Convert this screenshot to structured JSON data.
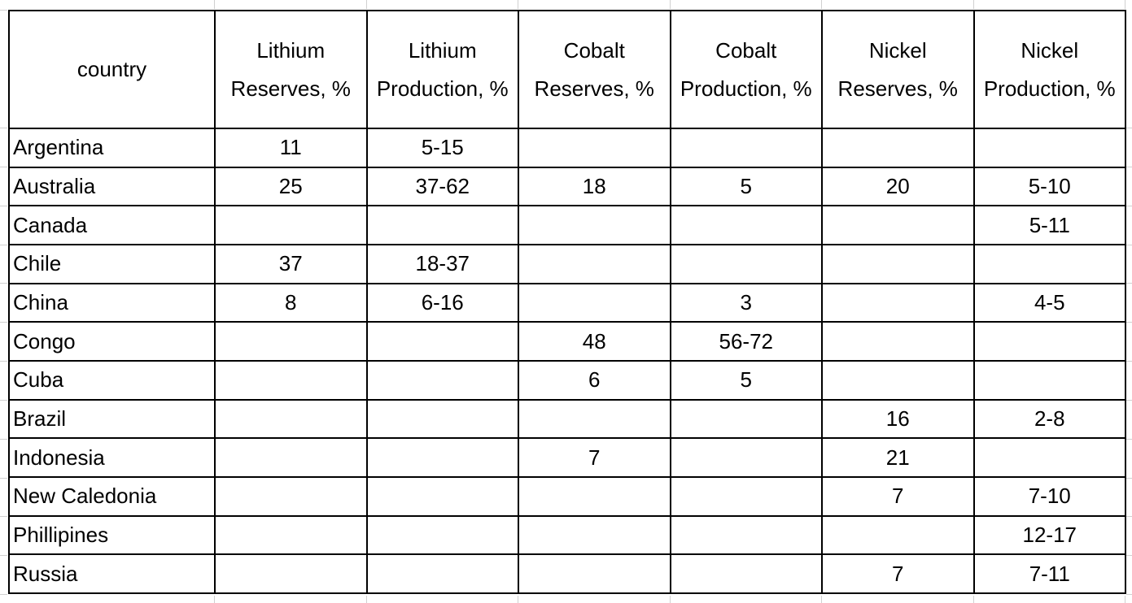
{
  "colors": {
    "table_border": "#000000",
    "sheet_gridline": "#d0d0d0",
    "text": "#000000",
    "background": "#ffffff"
  },
  "chart_data": {
    "type": "table",
    "columns": [
      "country",
      "Lithium Reserves, %",
      "Lithium Production, %",
      "Cobalt Reserves, %",
      "Cobalt Production, %",
      "Nickel Reserves, %",
      "Nickel Production, %"
    ],
    "rows": [
      {
        "country": "Argentina",
        "values": [
          "11",
          "5-15",
          "",
          "",
          "",
          ""
        ]
      },
      {
        "country": "Australia",
        "values": [
          "25",
          "37-62",
          "18",
          "5",
          "20",
          "5-10"
        ]
      },
      {
        "country": "Canada",
        "values": [
          "",
          "",
          "",
          "",
          "",
          "5-11"
        ]
      },
      {
        "country": "Chile",
        "values": [
          "37",
          "18-37",
          "",
          "",
          "",
          ""
        ]
      },
      {
        "country": "China",
        "values": [
          "8",
          "6-16",
          "",
          "3",
          "",
          "4-5"
        ]
      },
      {
        "country": "Congo",
        "values": [
          "",
          "",
          "48",
          "56-72",
          "",
          ""
        ]
      },
      {
        "country": "Cuba",
        "values": [
          "",
          "",
          "6",
          "5",
          "",
          ""
        ]
      },
      {
        "country": "Brazil",
        "values": [
          "",
          "",
          "",
          "",
          "16",
          "2-8"
        ]
      },
      {
        "country": "Indonesia",
        "values": [
          "",
          "",
          "7",
          "",
          "21",
          ""
        ]
      },
      {
        "country": "New Caledonia",
        "values": [
          "",
          "",
          "",
          "",
          "7",
          "7-10"
        ]
      },
      {
        "country": "Phillipines",
        "values": [
          "",
          "",
          "",
          "",
          "",
          "12-17"
        ]
      },
      {
        "country": "Russia",
        "values": [
          "",
          "",
          "",
          "",
          "7",
          "7-11"
        ]
      }
    ]
  }
}
